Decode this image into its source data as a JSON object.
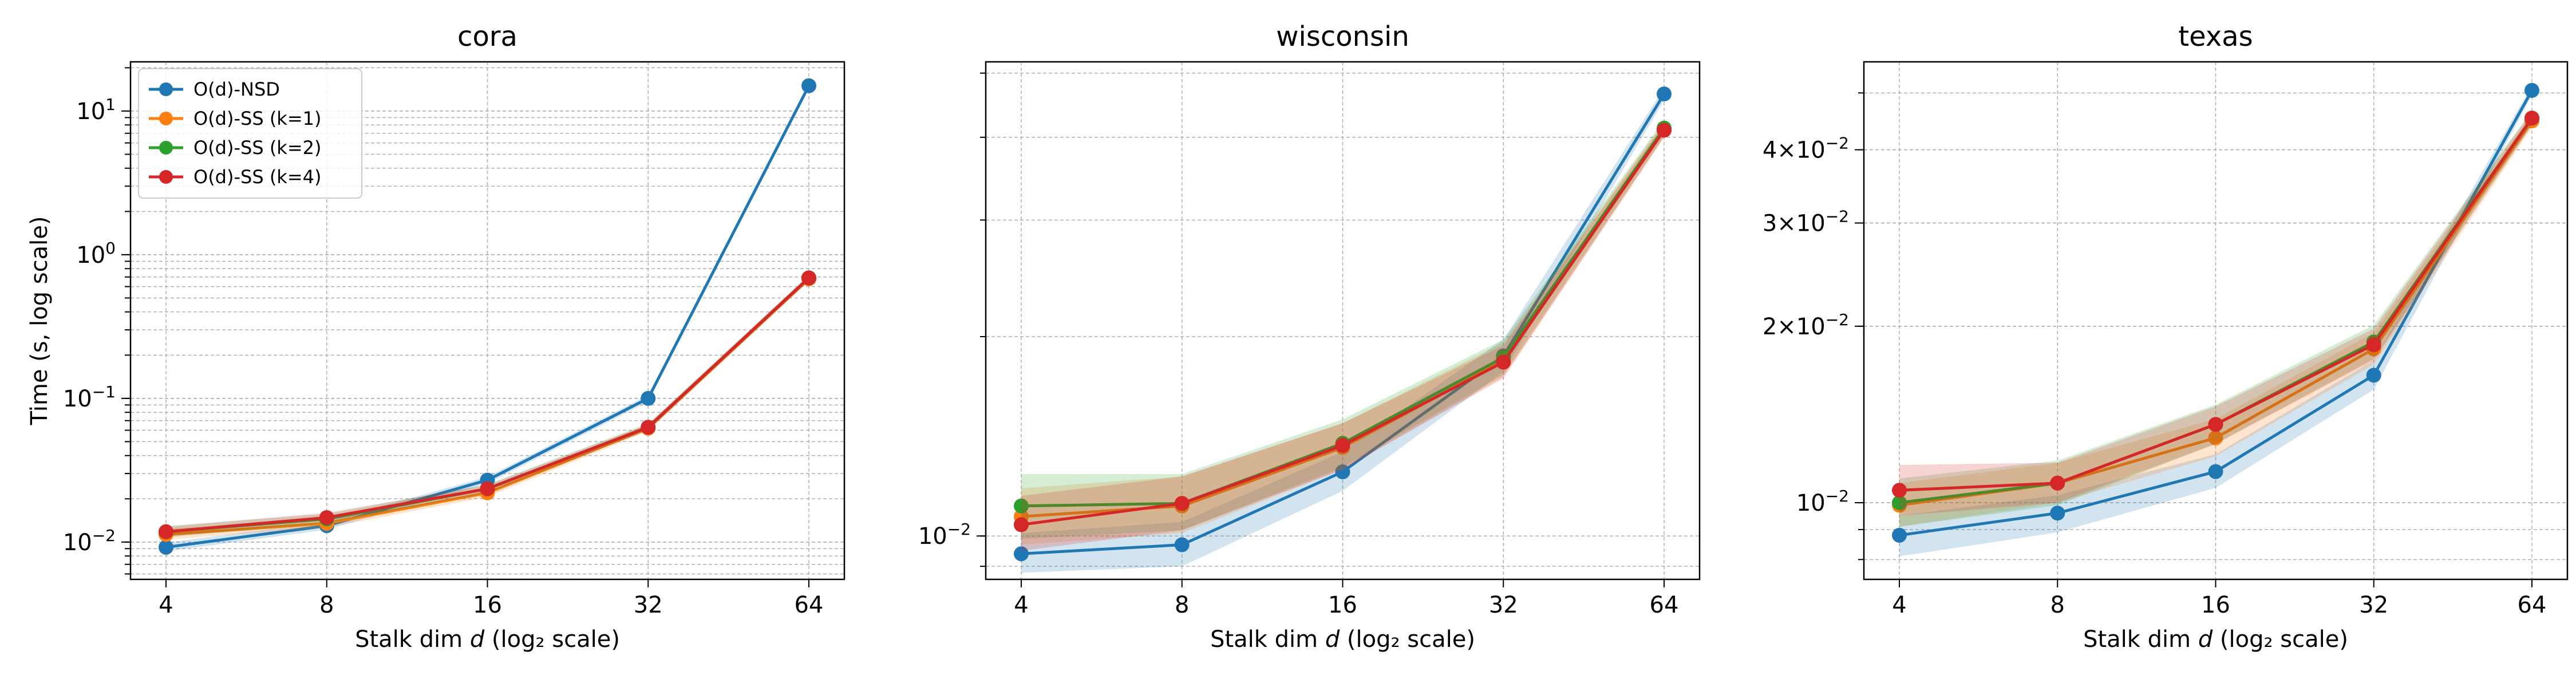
{
  "chart_data": [
    {
      "type": "line",
      "title": "cora",
      "xlabel_prefix": "Stalk dim ",
      "xlabel_var": "d",
      "xlabel_suffix": " (log₂ scale)",
      "ylabel": "Time (s, log scale)",
      "x_scale": "log2",
      "y_scale": "log10",
      "x": [
        4,
        8,
        16,
        32,
        64
      ],
      "xticks": [
        "4",
        "8",
        "16",
        "32",
        "64"
      ],
      "ylim": [
        0.0055,
        22
      ],
      "yticks": [
        {
          "value": 0.01,
          "base": "10",
          "exp": "−2"
        },
        {
          "value": 0.1,
          "base": "10",
          "exp": "−1"
        },
        {
          "value": 1,
          "base": "10",
          "exp": "0"
        },
        {
          "value": 10,
          "base": "10",
          "exp": "1"
        }
      ],
      "grid": true,
      "legend_position": "upper-left",
      "series": [
        {
          "name": "O(d)-NSD",
          "color": "#1f77b4",
          "values": [
            0.0092,
            0.013,
            0.027,
            0.1,
            15.0
          ],
          "band": [
            [
              0.0086,
              0.0099
            ],
            [
              0.0122,
              0.0139
            ],
            [
              0.0255,
              0.0285
            ],
            [
              0.095,
              0.105
            ],
            [
              14.5,
              15.5
            ]
          ]
        },
        {
          "name": "O(d)-SS (k=1)",
          "color": "#ff7f0e",
          "values": [
            0.0113,
            0.0135,
            0.022,
            0.062,
            0.68
          ],
          "band": [
            [
              0.0104,
              0.0124
            ],
            [
              0.0126,
              0.0146
            ],
            [
              0.0206,
              0.0236
            ],
            [
              0.059,
              0.066
            ],
            [
              0.65,
              0.71
            ]
          ]
        },
        {
          "name": "O(d)-SS (k=2)",
          "color": "#2ca02c",
          "values": [
            0.0118,
            0.0145,
            0.0235,
            0.063,
            0.69
          ],
          "band": [
            [
              0.0108,
              0.0129
            ],
            [
              0.0134,
              0.0157
            ],
            [
              0.0219,
              0.0252
            ],
            [
              0.06,
              0.067
            ],
            [
              0.66,
              0.72
            ]
          ]
        },
        {
          "name": "O(d)-SS (k=4)",
          "color": "#d62728",
          "values": [
            0.0118,
            0.0148,
            0.0235,
            0.063,
            0.69
          ],
          "band": [
            [
              0.0109,
              0.0128
            ],
            [
              0.0137,
              0.016
            ],
            [
              0.022,
              0.025
            ],
            [
              0.06,
              0.066
            ],
            [
              0.66,
              0.72
            ]
          ]
        }
      ]
    },
    {
      "type": "line",
      "title": "wisconsin",
      "xlabel_prefix": "Stalk dim ",
      "xlabel_var": "d",
      "xlabel_suffix": " (log₂ scale)",
      "ylabel": "",
      "x_scale": "log2",
      "y_scale": "log10",
      "x": [
        4,
        8,
        16,
        32,
        64
      ],
      "xticks": [
        "4",
        "8",
        "16",
        "32",
        "64"
      ],
      "ylim": [
        0.0086,
        0.052
      ],
      "yticks": [
        {
          "value": 0.01,
          "base": "10",
          "exp": "−2"
        }
      ],
      "grid": true,
      "series": [
        {
          "name": "O(d)-NSD",
          "color": "#1f77b4",
          "values": [
            0.0094,
            0.0097,
            0.0125,
            0.0187,
            0.0465
          ],
          "band": [
            [
              0.0088,
              0.0101
            ],
            [
              0.009,
              0.0105
            ],
            [
              0.0117,
              0.0134
            ],
            [
              0.0177,
              0.0198
            ],
            [
              0.0455,
              0.0475
            ]
          ]
        },
        {
          "name": "O(d)-SS (k=1)",
          "color": "#ff7f0e",
          "values": [
            0.0107,
            0.0111,
            0.0136,
            0.0184,
            0.041
          ],
          "band": [
            [
              0.0097,
              0.0118
            ],
            [
              0.0101,
              0.0123
            ],
            [
              0.0126,
              0.0148
            ],
            [
              0.0174,
              0.0196
            ],
            [
              0.04,
              0.0422
            ]
          ]
        },
        {
          "name": "O(d)-SS (k=2)",
          "color": "#2ca02c",
          "values": [
            0.0111,
            0.0112,
            0.0138,
            0.0186,
            0.0413
          ],
          "band": [
            [
              0.0099,
              0.0124
            ],
            [
              0.0102,
              0.0124
            ],
            [
              0.0127,
              0.015
            ],
            [
              0.0175,
              0.0198
            ],
            [
              0.0402,
              0.0425
            ]
          ]
        },
        {
          "name": "O(d)-SS (k=4)",
          "color": "#d62728",
          "values": [
            0.0104,
            0.0112,
            0.0137,
            0.0183,
            0.041
          ],
          "band": [
            [
              0.0095,
              0.0115
            ],
            [
              0.0102,
              0.0123
            ],
            [
              0.0126,
              0.0148
            ],
            [
              0.0173,
              0.0194
            ],
            [
              0.04,
              0.042
            ]
          ]
        }
      ]
    },
    {
      "type": "line",
      "title": "texas",
      "xlabel_prefix": "Stalk dim ",
      "xlabel_var": "d",
      "xlabel_suffix": " (log₂ scale)",
      "ylabel": "",
      "x_scale": "log2",
      "y_scale": "log10",
      "x": [
        4,
        8,
        16,
        32,
        64
      ],
      "xticks": [
        "4",
        "8",
        "16",
        "32",
        "64"
      ],
      "ylim": [
        0.0074,
        0.0565
      ],
      "yticks": [
        {
          "value": 0.01,
          "base": "10",
          "exp": "−2"
        },
        {
          "value": 0.02,
          "base": "2×10",
          "exp": "−2"
        },
        {
          "value": 0.03,
          "base": "3×10",
          "exp": "−2"
        },
        {
          "value": 0.04,
          "base": "4×10",
          "exp": "−2"
        }
      ],
      "grid": true,
      "series": [
        {
          "name": "O(d)-NSD",
          "color": "#1f77b4",
          "values": [
            0.0088,
            0.0096,
            0.0113,
            0.0165,
            0.0505
          ],
          "band": [
            [
              0.0081,
              0.0095
            ],
            [
              0.0089,
              0.0103
            ],
            [
              0.0106,
              0.0121
            ],
            [
              0.0156,
              0.0175
            ],
            [
              0.0495,
              0.0515
            ]
          ]
        },
        {
          "name": "O(d)-SS (k=1)",
          "color": "#ff7f0e",
          "values": [
            0.0099,
            0.0108,
            0.0129,
            0.0183,
            0.0448
          ],
          "band": [
            [
              0.0091,
              0.0108
            ],
            [
              0.01,
              0.0117
            ],
            [
              0.012,
              0.0139
            ],
            [
              0.0172,
              0.0195
            ],
            [
              0.0436,
              0.046
            ]
          ]
        },
        {
          "name": "O(d)-SS (k=2)",
          "color": "#2ca02c",
          "values": [
            0.01,
            0.0108,
            0.0136,
            0.0188,
            0.0453
          ],
          "band": [
            [
              0.0091,
              0.011
            ],
            [
              0.0099,
              0.0118
            ],
            [
              0.0126,
              0.0147
            ],
            [
              0.0176,
              0.0201
            ],
            [
              0.044,
              0.0466
            ]
          ]
        },
        {
          "name": "O(d)-SS (k=4)",
          "color": "#d62728",
          "values": [
            0.0105,
            0.0108,
            0.0136,
            0.0186,
            0.0453
          ],
          "band": [
            [
              0.0095,
              0.0116
            ],
            [
              0.01,
              0.0117
            ],
            [
              0.0126,
              0.0146
            ],
            [
              0.0175,
              0.0198
            ],
            [
              0.0441,
              0.0465
            ]
          ]
        }
      ]
    }
  ]
}
